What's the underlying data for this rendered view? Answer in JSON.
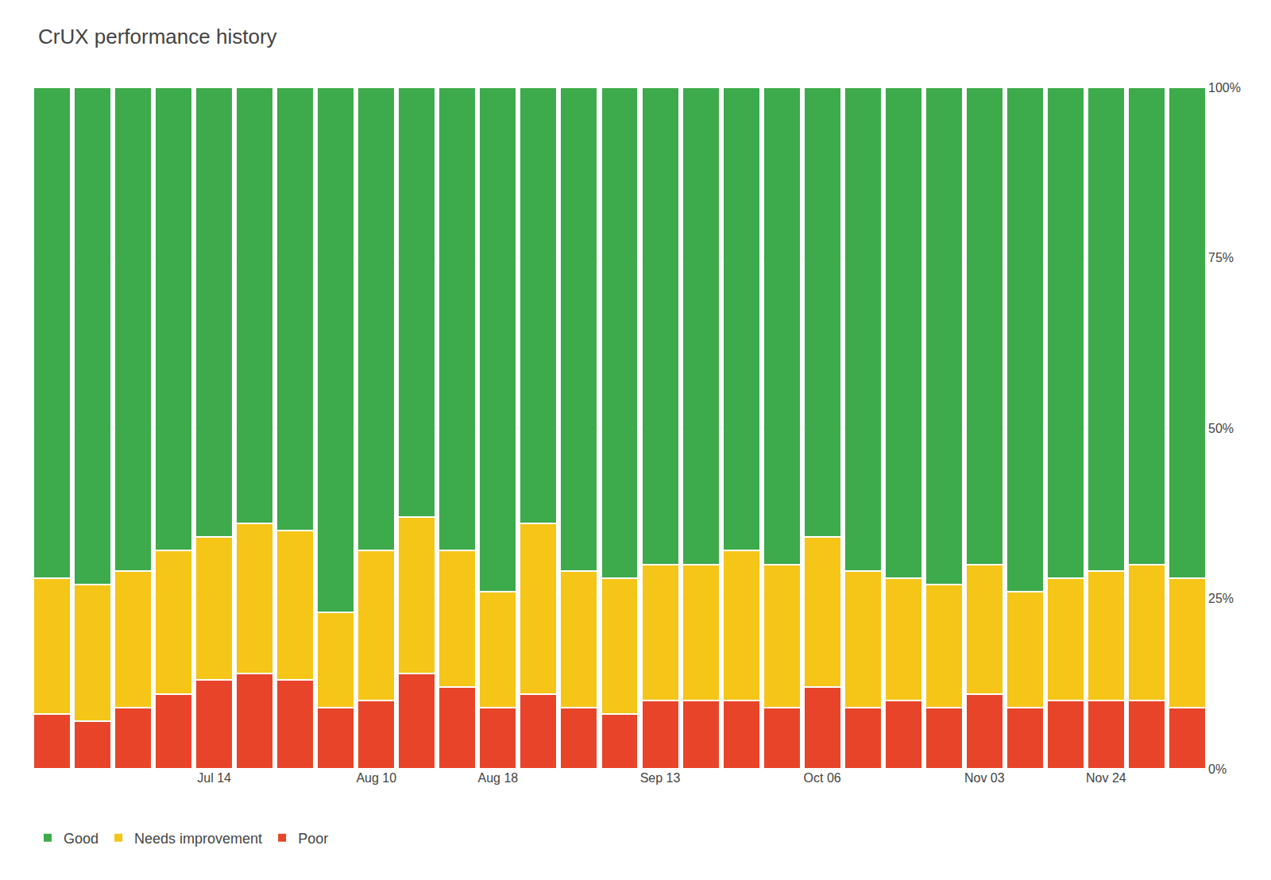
{
  "chart_data": {
    "type": "bar",
    "title": "CrUX performance history",
    "stacked": true,
    "grid": true,
    "legend": "bottom",
    "categories": [
      null,
      null,
      null,
      null,
      "Jul 14",
      null,
      null,
      null,
      "Aug 10",
      null,
      null,
      "Aug 18",
      null,
      null,
      null,
      "Sep 13",
      null,
      null,
      null,
      "Oct 06",
      null,
      null,
      null,
      "Nov 03",
      null,
      null,
      "Nov 24",
      null,
      null
    ],
    "series": [
      {
        "name": "Poor",
        "color": "#E8442A",
        "values": [
          8,
          7,
          9,
          11,
          13,
          14,
          13,
          9,
          10,
          14,
          12,
          9,
          11,
          9,
          8,
          10,
          10,
          10,
          9,
          12,
          9,
          10,
          9,
          11,
          9,
          10,
          10,
          10,
          9
        ]
      },
      {
        "name": "Needs improvement",
        "color": "#F5C518",
        "values": [
          20,
          20,
          20,
          21,
          21,
          22,
          22,
          14,
          22,
          23,
          20,
          17,
          25,
          20,
          20,
          20,
          20,
          22,
          21,
          22,
          20,
          18,
          18,
          19,
          17,
          18,
          19,
          20,
          19
        ]
      },
      {
        "name": "Good",
        "color": "#3DAA4B",
        "values": [
          72,
          73,
          71,
          68,
          66,
          64,
          65,
          77,
          68,
          63,
          68,
          74,
          64,
          71,
          72,
          70,
          70,
          68,
          70,
          66,
          71,
          72,
          73,
          70,
          74,
          72,
          71,
          70,
          72
        ]
      }
    ],
    "ylim": [
      0,
      100
    ],
    "yticks": [
      {
        "value": 100,
        "label": "100%"
      },
      {
        "value": 75,
        "label": "75%"
      },
      {
        "value": 50,
        "label": "50%"
      },
      {
        "value": 25,
        "label": "25%"
      },
      {
        "value": 0,
        "label": "0%"
      }
    ]
  }
}
